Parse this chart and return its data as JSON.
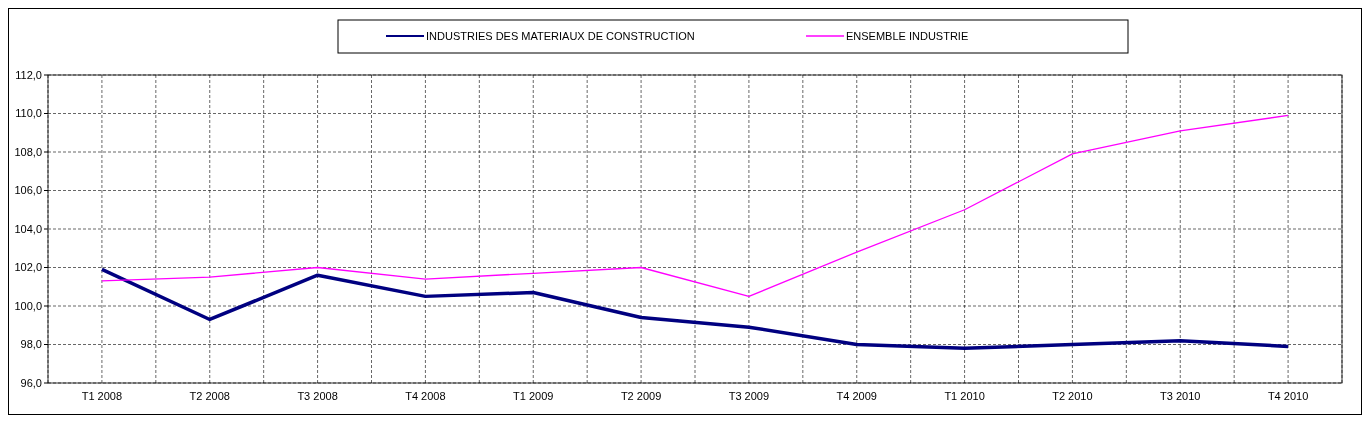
{
  "chart_data": {
    "type": "line",
    "categories": [
      "T1 2008",
      "T2 2008",
      "T3 2008",
      "T4 2008",
      "T1 2009",
      "T2 2009",
      "T3 2009",
      "T4 2009",
      "T1 2010",
      "T2 2010",
      "T3 2010",
      "T4 2010"
    ],
    "series": [
      {
        "name": "INDUSTRIES DES MATERIAUX DE CONSTRUCTION",
        "color": "#000080",
        "values": [
          101.9,
          99.3,
          101.6,
          100.5,
          100.7,
          99.4,
          98.9,
          98.0,
          97.8,
          98.0,
          98.2,
          97.9
        ]
      },
      {
        "name": "ENSEMBLE INDUSTRIE",
        "color": "#ff00ff",
        "values": [
          101.3,
          101.5,
          102.0,
          101.4,
          101.7,
          102.0,
          100.5,
          102.8,
          105.0,
          107.9,
          109.1,
          109.9
        ]
      }
    ],
    "ylim": [
      96,
      112
    ],
    "yticks": [
      {
        "value": 96,
        "label": "96,0"
      },
      {
        "value": 98,
        "label": "98,0"
      },
      {
        "value": 100,
        "label": "100,0"
      },
      {
        "value": 102,
        "label": "102,0"
      },
      {
        "value": 104,
        "label": "104,0"
      },
      {
        "value": 106,
        "label": "106,0"
      },
      {
        "value": 108,
        "label": "108,0"
      },
      {
        "value": 110,
        "label": "110,0"
      },
      {
        "value": 112,
        "label": "112,0"
      }
    ],
    "grid": true,
    "legend": "top",
    "line_style": "solid"
  }
}
